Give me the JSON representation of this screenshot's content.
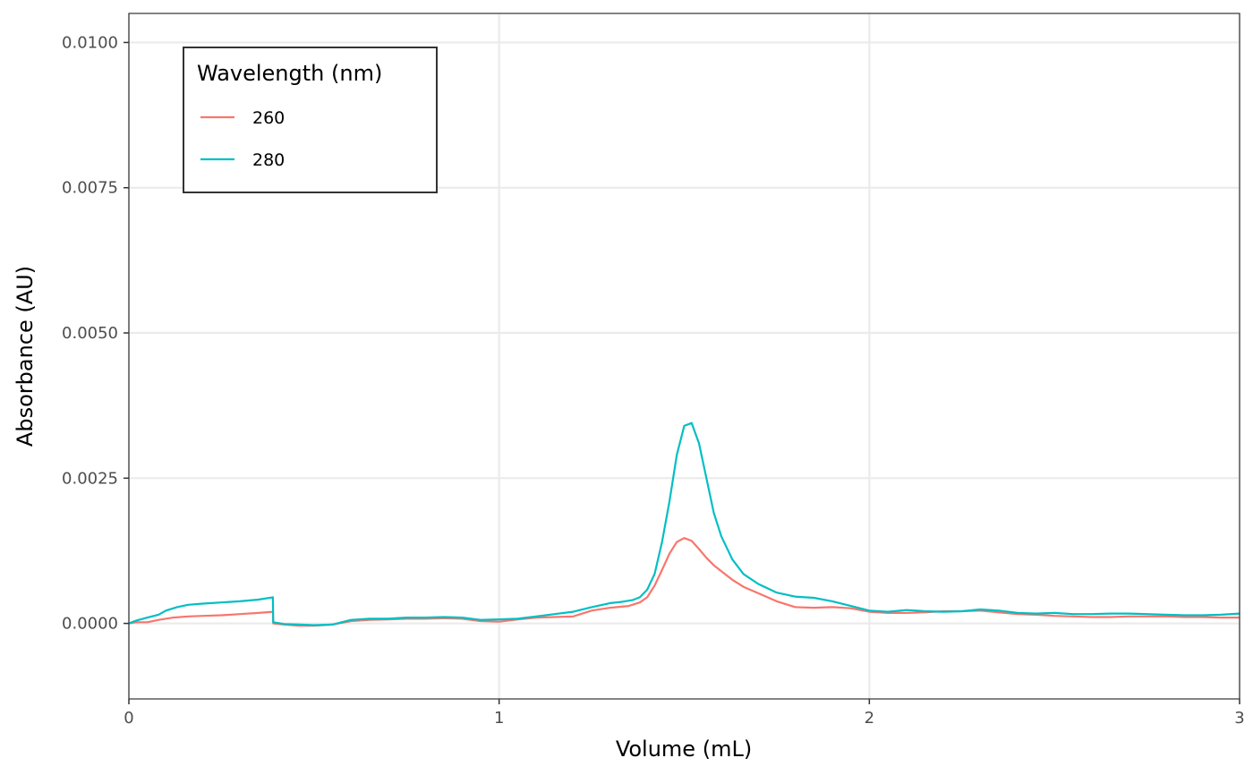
{
  "chart_data": {
    "type": "line",
    "title": "",
    "xlabel": "Volume (mL)",
    "ylabel": "Absorbance (AU)",
    "xlim": [
      0,
      3
    ],
    "ylim": [
      -0.0013,
      0.0105
    ],
    "x_ticks": [
      {
        "value": 0,
        "label": "0"
      },
      {
        "value": 1,
        "label": "1"
      },
      {
        "value": 2,
        "label": "2"
      },
      {
        "value": 3,
        "label": "3"
      }
    ],
    "y_ticks": [
      {
        "value": 0.0,
        "label": "0.0000"
      },
      {
        "value": 0.0025,
        "label": "0.0025"
      },
      {
        "value": 0.005,
        "label": "0.0050"
      },
      {
        "value": 0.0075,
        "label": "0.0075"
      },
      {
        "value": 0.01,
        "label": "0.0100"
      }
    ],
    "grid": true,
    "legend": {
      "title": "Wavelength (nm)",
      "position": "top-left"
    },
    "series": [
      {
        "name": "260",
        "color": "#f8766d",
        "x": [
          0,
          0.02,
          0.05,
          0.08,
          0.12,
          0.16,
          0.2,
          0.25,
          0.3,
          0.35,
          0.389,
          0.39,
          0.42,
          0.46,
          0.5,
          0.55,
          0.6,
          0.65,
          0.7,
          0.75,
          0.8,
          0.85,
          0.9,
          0.95,
          1.0,
          1.05,
          1.1,
          1.15,
          1.2,
          1.25,
          1.3,
          1.35,
          1.38,
          1.4,
          1.42,
          1.44,
          1.46,
          1.48,
          1.5,
          1.52,
          1.54,
          1.56,
          1.58,
          1.6,
          1.63,
          1.66,
          1.7,
          1.75,
          1.8,
          1.85,
          1.9,
          1.95,
          2.0,
          2.05,
          2.1,
          2.15,
          2.2,
          2.25,
          2.3,
          2.35,
          2.4,
          2.45,
          2.5,
          2.55,
          2.6,
          2.65,
          2.7,
          2.75,
          2.8,
          2.85,
          2.9,
          2.95,
          3.0
        ],
        "y": [
          0.0,
          2e-05,
          2e-05,
          6e-05,
          0.0001,
          0.00012,
          0.00013,
          0.00014,
          0.00016,
          0.00018,
          0.0002,
          0.0,
          -2e-05,
          -4e-05,
          -4e-05,
          -2e-05,
          4e-05,
          6e-05,
          7e-05,
          8e-05,
          8e-05,
          9e-05,
          8e-05,
          4e-05,
          3e-05,
          7e-05,
          0.0001,
          0.00011,
          0.00012,
          0.00022,
          0.00027,
          0.0003,
          0.00036,
          0.00045,
          0.00065,
          0.00092,
          0.0012,
          0.0014,
          0.00147,
          0.00142,
          0.00128,
          0.00113,
          0.001,
          0.0009,
          0.00075,
          0.00063,
          0.00052,
          0.00038,
          0.00028,
          0.00027,
          0.00028,
          0.00026,
          0.0002,
          0.00018,
          0.00018,
          0.00019,
          0.00021,
          0.00021,
          0.00022,
          0.00019,
          0.00016,
          0.00015,
          0.00013,
          0.00012,
          0.00011,
          0.00011,
          0.00012,
          0.00012,
          0.00012,
          0.00011,
          0.00011,
          0.0001,
          0.0001
        ]
      },
      {
        "name": "280",
        "color": "#00bfc4",
        "x": [
          0,
          0.02,
          0.05,
          0.08,
          0.1,
          0.13,
          0.16,
          0.2,
          0.25,
          0.3,
          0.35,
          0.389,
          0.39,
          0.42,
          0.46,
          0.5,
          0.55,
          0.6,
          0.65,
          0.7,
          0.75,
          0.8,
          0.85,
          0.9,
          0.95,
          1.0,
          1.05,
          1.1,
          1.15,
          1.2,
          1.25,
          1.3,
          1.33,
          1.36,
          1.38,
          1.4,
          1.42,
          1.44,
          1.46,
          1.48,
          1.5,
          1.52,
          1.54,
          1.56,
          1.58,
          1.6,
          1.63,
          1.66,
          1.7,
          1.75,
          1.8,
          1.85,
          1.9,
          1.95,
          2.0,
          2.05,
          2.1,
          2.15,
          2.2,
          2.25,
          2.3,
          2.35,
          2.4,
          2.45,
          2.5,
          2.55,
          2.6,
          2.65,
          2.7,
          2.75,
          2.8,
          2.85,
          2.9,
          2.95,
          3.0
        ],
        "y": [
          0.0,
          5e-05,
          0.0001,
          0.00015,
          0.00022,
          0.00028,
          0.00032,
          0.00034,
          0.00036,
          0.00038,
          0.00041,
          0.00045,
          2e-05,
          -1e-05,
          -2e-05,
          -3e-05,
          -2e-05,
          6e-05,
          8e-05,
          8e-05,
          0.0001,
          0.0001,
          0.00011,
          0.0001,
          6e-05,
          7e-05,
          8e-05,
          0.00012,
          0.00016,
          0.0002,
          0.00028,
          0.00035,
          0.00037,
          0.0004,
          0.00045,
          0.00058,
          0.00085,
          0.0014,
          0.0021,
          0.0029,
          0.0034,
          0.00345,
          0.0031,
          0.0025,
          0.0019,
          0.0015,
          0.0011,
          0.00085,
          0.00068,
          0.00053,
          0.00046,
          0.00044,
          0.00038,
          0.0003,
          0.00022,
          0.0002,
          0.00023,
          0.00021,
          0.0002,
          0.00021,
          0.00024,
          0.00022,
          0.00018,
          0.00017,
          0.00018,
          0.00016,
          0.00016,
          0.00017,
          0.00017,
          0.00016,
          0.00015,
          0.00014,
          0.00014,
          0.00015,
          0.00017
        ]
      }
    ]
  }
}
